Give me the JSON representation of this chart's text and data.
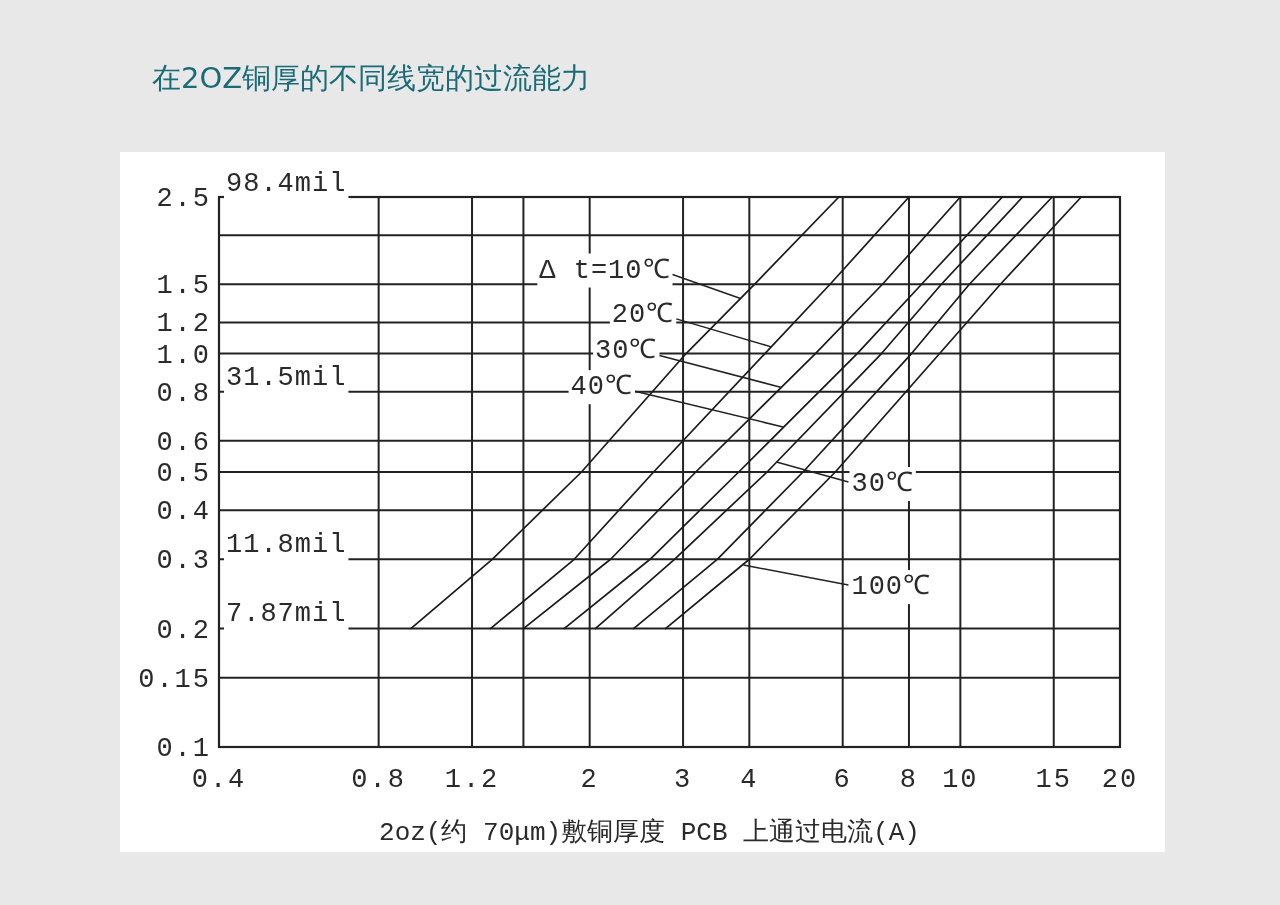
{
  "chart_data": {
    "type": "line",
    "title": "在2OZ铜厚的不同线宽的过流能力",
    "xlabel": "2oz(约 70μm)敷铜厚度 PCB 上通过电流(A)",
    "log": "xy",
    "grid": true,
    "marker": "none",
    "line_style": "solid",
    "xlim": [
      0.4,
      20
    ],
    "xticks": [
      0.4,
      0.8,
      1.2,
      {
        "value": 1.5,
        "label": null
      },
      2,
      3,
      4,
      6,
      8,
      10,
      15,
      20
    ],
    "ylim": [
      0.1,
      2.5
    ],
    "yticks": [
      0.1,
      0.15,
      0.2,
      0.3,
      0.4,
      0.5,
      0.6,
      0.8,
      {
        "value": 1,
        "label": "1.0"
      },
      1.2,
      1.5,
      {
        "value": 2,
        "label": null
      },
      2.5
    ],
    "series": [
      {
        "color": "#1a1a1a",
        "x": [
          0.92,
          1.31,
          1.93,
          3.04,
          4.09,
          5.9
        ],
        "values": [
          0.2,
          0.3,
          0.5,
          1.0,
          1.5,
          2.5
        ]
      },
      {
        "color": "#1a1a1a",
        "x": [
          1.3,
          1.87,
          2.64,
          4.28,
          5.68,
          8.0
        ],
        "values": [
          0.2,
          0.3,
          0.5,
          1.0,
          1.5,
          2.5
        ]
      },
      {
        "color": "#1a1a1a",
        "x": [
          1.5,
          2.19,
          3.17,
          5.33,
          7.13,
          10
        ],
        "values": [
          0.2,
          0.3,
          0.5,
          1.0,
          1.5,
          2.5
        ]
      },
      {
        "color": "#1a1a1a",
        "x": [
          1.79,
          2.6,
          3.82,
          6.39,
          8.45,
          12
        ],
        "values": [
          0.2,
          0.3,
          0.5,
          1.0,
          1.5,
          2.5
        ]
      },
      {
        "color": "#1a1a1a",
        "x": [
          2.05,
          2.89,
          4.32,
          7.1,
          9.21,
          13.1
        ],
        "values": [
          0.2,
          0.3,
          0.5,
          1.0,
          1.5,
          2.5
        ]
      },
      {
        "color": "#1a1a1a",
        "x": [
          2.42,
          3.48,
          5.05,
          8.09,
          10.4,
          14.9
        ],
        "values": [
          0.2,
          0.3,
          0.5,
          1.0,
          1.5,
          2.5
        ]
      },
      {
        "color": "#1a1a1a",
        "x": [
          2.78,
          4.0,
          5.81,
          9.14,
          11.9,
          16.9
        ],
        "values": [
          0.2,
          0.3,
          0.5,
          1.0,
          1.5,
          2.5
        ]
      }
    ],
    "annotations": [
      "98.4mil",
      "31.5mil",
      "11.8mil",
      "7.87mil",
      {
        "text": "Δ t=10℃",
        "x": 3.85,
        "y": 1.38
      },
      {
        "text": "20℃",
        "x": 4.4,
        "y": 1.04
      },
      {
        "text": "30℃",
        "x": 4.6,
        "y": 0.82
      },
      {
        "text": "40℃",
        "x": 4.65,
        "y": 0.65
      },
      {
        "text": "30℃",
        "x": 4.5,
        "y": 0.53
      },
      {
        "text": "100℃",
        "x": 3.9,
        "y": 0.29
      }
    ]
  }
}
